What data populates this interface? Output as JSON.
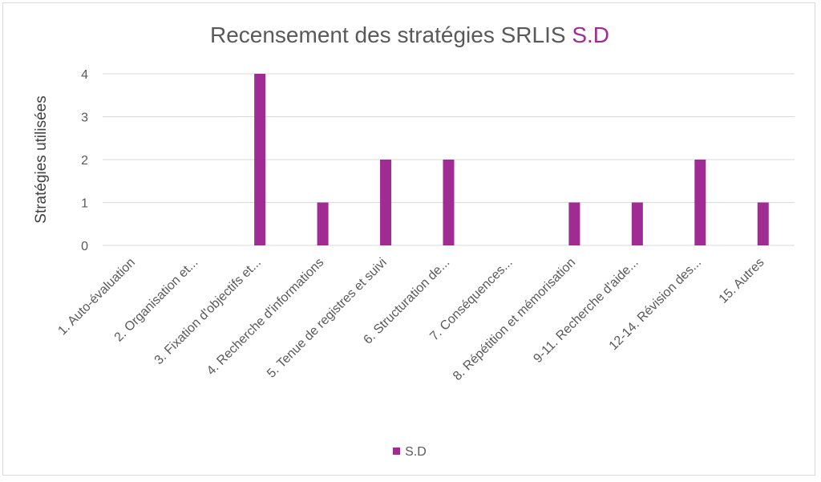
{
  "chart_data": {
    "type": "bar",
    "title": "Recensement des stratégies SRLIS",
    "title_accent": "S.D",
    "ylabel": "Stratégies utilisées",
    "xlabel": "",
    "ylim": [
      0,
      4
    ],
    "yticks": [
      0,
      1,
      2,
      3,
      4
    ],
    "grid": true,
    "legend_position": "bottom",
    "categories": [
      "1. Auto-évaluation",
      "2. Organisation et...",
      "3. Fixation d'objectifs et...",
      "4. Recherche d'informations",
      "5. Tenue de registres et suivi",
      "6. Structuration de...",
      "7. Conséquences...",
      "8. Répétition et mémorisation",
      "9-11. Recherche d'aide...",
      "12-14. Révision des...",
      "15. Autres"
    ],
    "series": [
      {
        "name": "S.D",
        "color": "#a02b93",
        "values": [
          0,
          0,
          4,
          1,
          2,
          2,
          0,
          1,
          1,
          2,
          1
        ]
      }
    ]
  }
}
